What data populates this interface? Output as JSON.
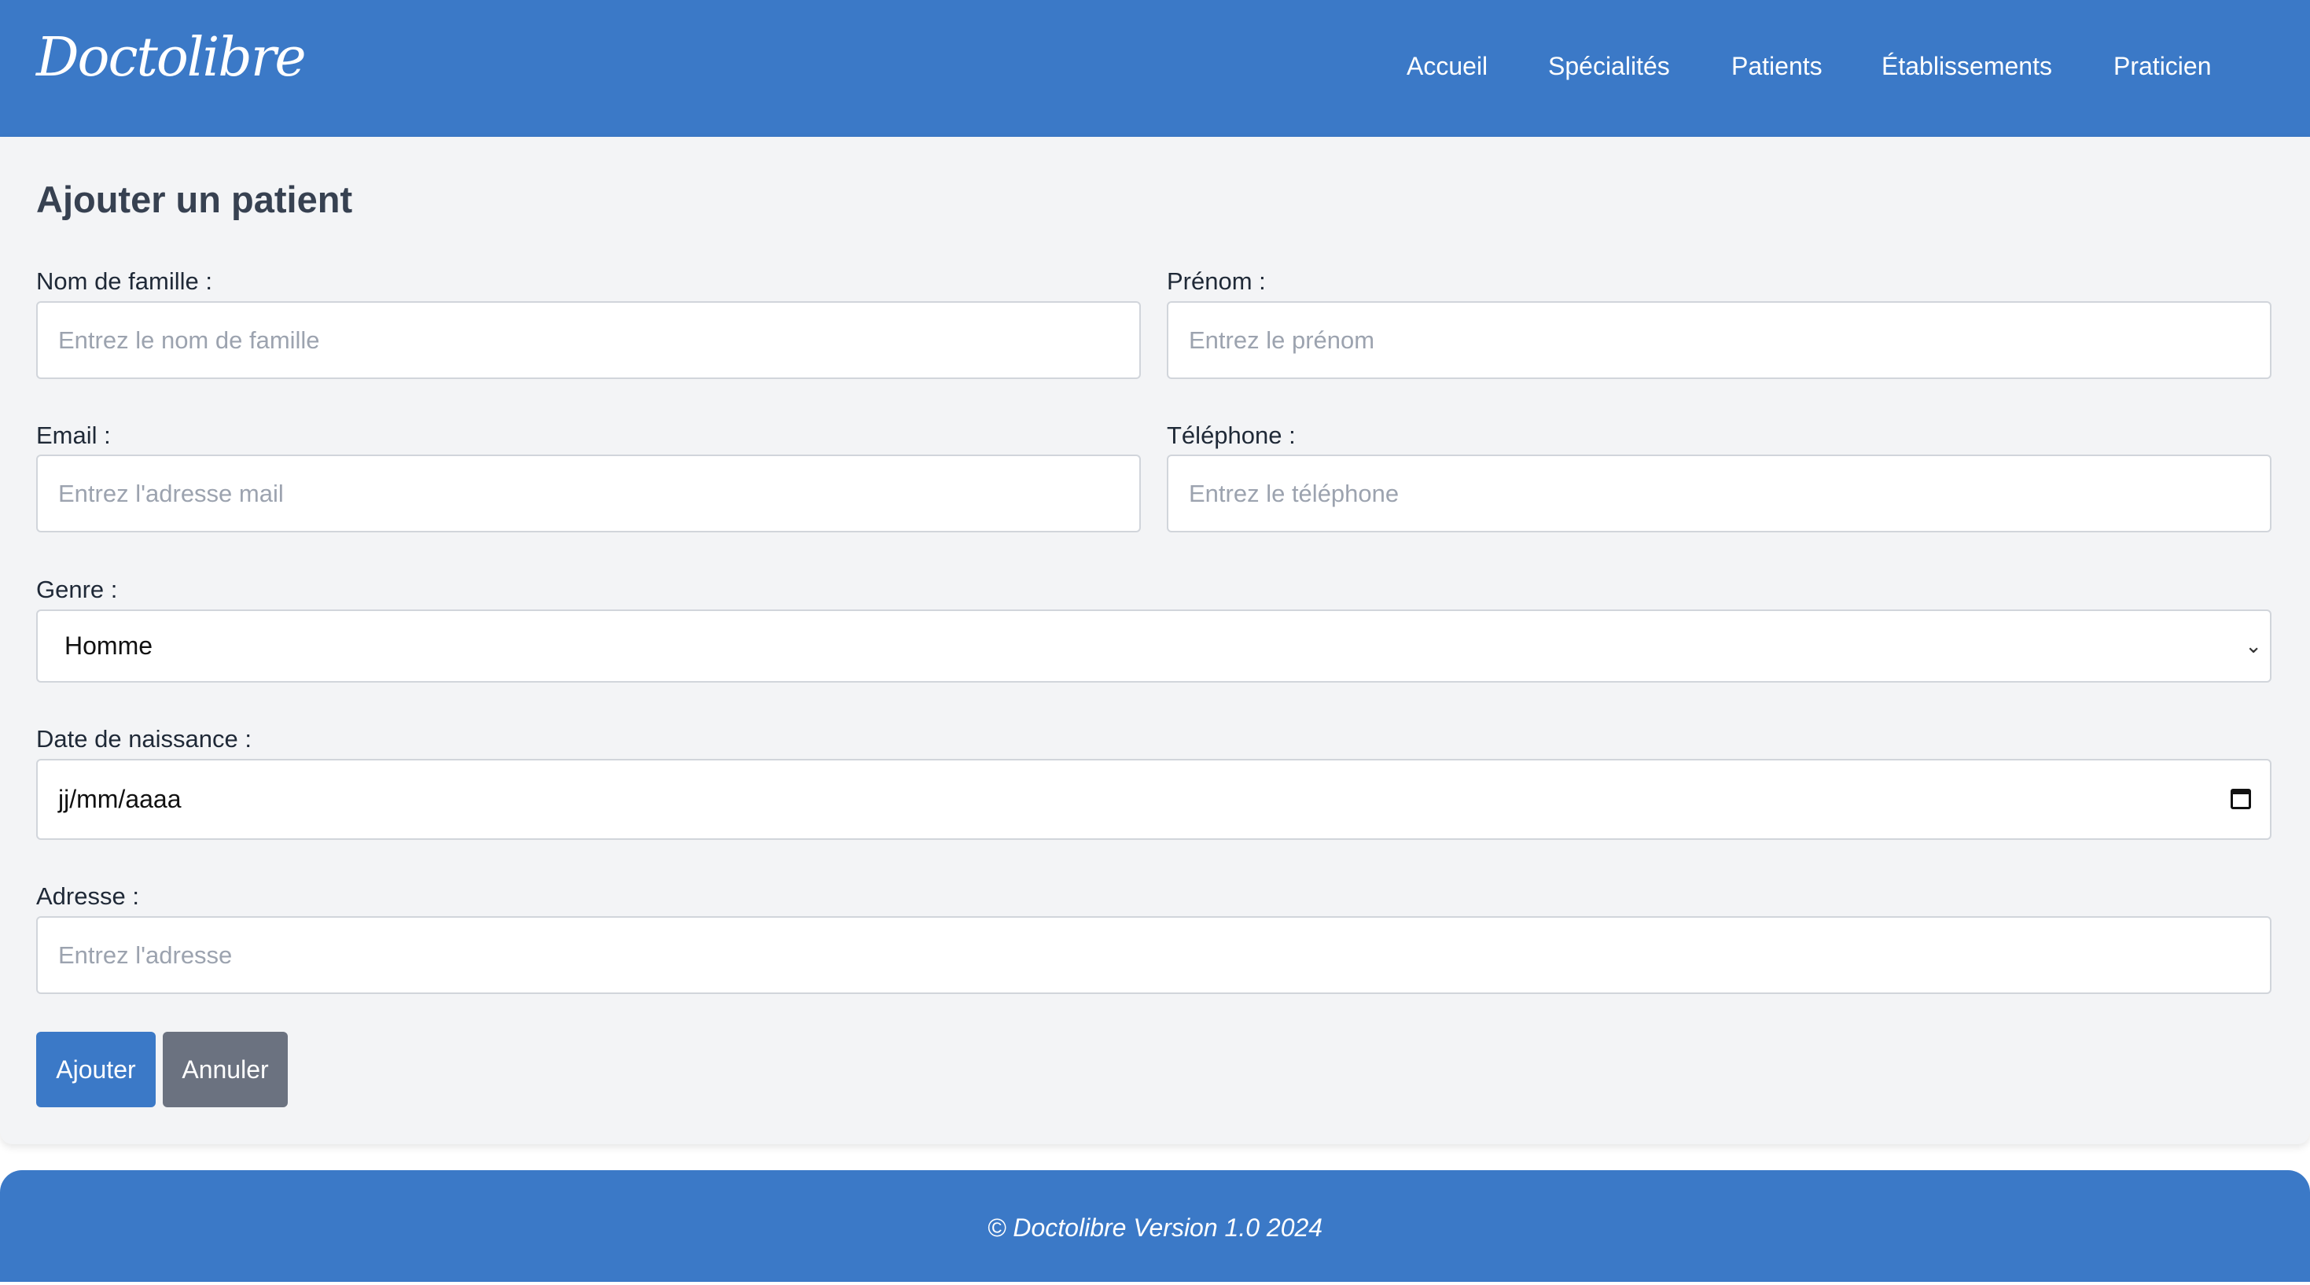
{
  "header": {
    "logo": "Doctolibre",
    "nav": [
      "Accueil",
      "Spécialités",
      "Patients",
      "Établissements",
      "Praticien"
    ]
  },
  "form": {
    "title": "Ajouter un patient",
    "nom_label": "Nom de famille :",
    "nom_placeholder": "Entrez le nom de famille",
    "prenom_label": "Prénom :",
    "prenom_placeholder": "Entrez le prénom",
    "email_label": "Email :",
    "email_placeholder": "Entrez l'adresse mail",
    "tel_label": "Téléphone :",
    "tel_placeholder": "Entrez le téléphone",
    "genre_label": "Genre :",
    "genre_value": "Homme",
    "date_label": "Date de naissance :",
    "date_value": "jj/mm/aaaa",
    "adresse_label": "Adresse :",
    "adresse_placeholder": "Entrez l'adresse",
    "submit": "Ajouter",
    "cancel": "Annuler"
  },
  "footer": {
    "text": "© Doctolibre Version 1.0 2024"
  },
  "colors": {
    "primary": "#3b79c7",
    "secondary": "#6b7280",
    "background": "#f3f4f6"
  }
}
